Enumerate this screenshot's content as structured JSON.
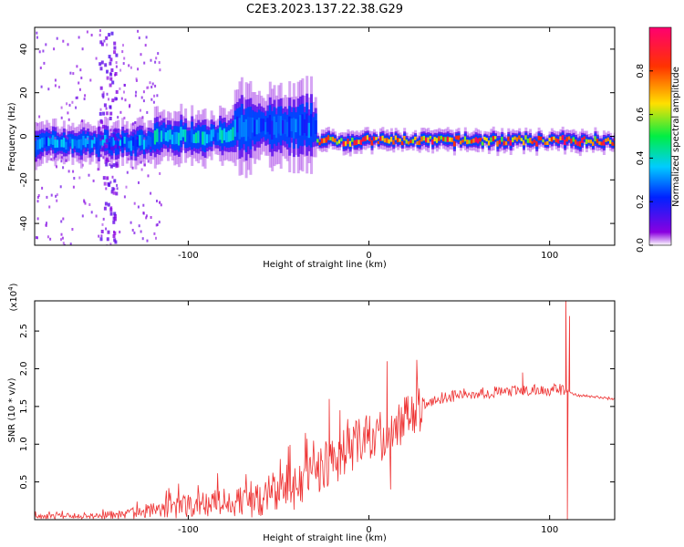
{
  "chart_data": [
    {
      "type": "heatmap",
      "title": "C2E3.2023.137.22.38.G29",
      "xlabel": "Height of straight line (km)",
      "ylabel": "Frequency (Hz)",
      "xlim": [
        -185,
        136
      ],
      "ylim": [
        -50,
        50
      ],
      "xticks": [
        -100,
        0,
        100
      ],
      "yticks": [
        -40,
        -20,
        0,
        20,
        40
      ],
      "colorbar": {
        "label": "Normalized spectral amplitude",
        "range": [
          0,
          1
        ],
        "ticks": [
          0.0,
          0.2,
          0.4,
          0.6,
          0.8
        ],
        "colormap": "rainbow",
        "colors": [
          "#ffffff",
          "#8a00e0",
          "#0022ff",
          "#00ccff",
          "#00ee44",
          "#ffe000",
          "#ff3300",
          "#ff0070"
        ]
      },
      "band": {
        "segments": [
          {
            "x": [
              -185,
              -120
            ],
            "center_hz": -3,
            "halfwidth_hz": 4,
            "peak": 0.35
          },
          {
            "x": [
              -120,
              -75
            ],
            "center_hz": 0,
            "halfwidth_hz": 5,
            "peak": 0.4
          },
          {
            "x": [
              -75,
              -30
            ],
            "center_hz": 4,
            "halfwidth_hz": 8,
            "peak": 0.3
          },
          {
            "x": [
              -30,
              136
            ],
            "center_hz": -2,
            "halfwidth_hz": 2,
            "peak": 0.9
          }
        ]
      },
      "grid": false
    },
    {
      "type": "line",
      "xlabel": "Height of straight line (km)",
      "ylabel": "SNR (10 * v/v)",
      "scale_note": "(x10",
      "scale_exp": "4",
      "scale_close": ")",
      "xlim": [
        -185,
        136
      ],
      "ylim": [
        0,
        2.9
      ],
      "xticks": [
        -100,
        0,
        100
      ],
      "yticks": [
        0.5,
        1.0,
        1.5,
        2.0,
        2.5
      ],
      "line_color": "#ee3333",
      "trend_points": [
        [
          -185,
          0.04
        ],
        [
          -150,
          0.05
        ],
        [
          -130,
          0.08
        ],
        [
          -110,
          0.15
        ],
        [
          -90,
          0.2
        ],
        [
          -70,
          0.25
        ],
        [
          -50,
          0.35
        ],
        [
          -35,
          0.5
        ],
        [
          -25,
          0.75
        ],
        [
          -15,
          0.85
        ],
        [
          -5,
          1.0
        ],
        [
          5,
          1.1
        ],
        [
          15,
          1.2
        ],
        [
          25,
          1.45
        ],
        [
          40,
          1.62
        ],
        [
          60,
          1.68
        ],
        [
          80,
          1.7
        ],
        [
          100,
          1.72
        ],
        [
          108,
          1.72
        ],
        [
          115,
          1.65
        ],
        [
          136,
          1.6
        ]
      ],
      "spikes": [
        {
          "x": -22,
          "y": 1.6
        },
        {
          "x": -16,
          "y": 1.45
        },
        {
          "x": 10,
          "y": 2.1
        },
        {
          "x": 12,
          "y": 0.4
        },
        {
          "x": 85,
          "y": 1.95
        },
        {
          "x": 109,
          "y": 2.95
        },
        {
          "x": 109.8,
          "y": 0.0
        },
        {
          "x": 111,
          "y": 2.7
        }
      ],
      "grid": false
    }
  ]
}
